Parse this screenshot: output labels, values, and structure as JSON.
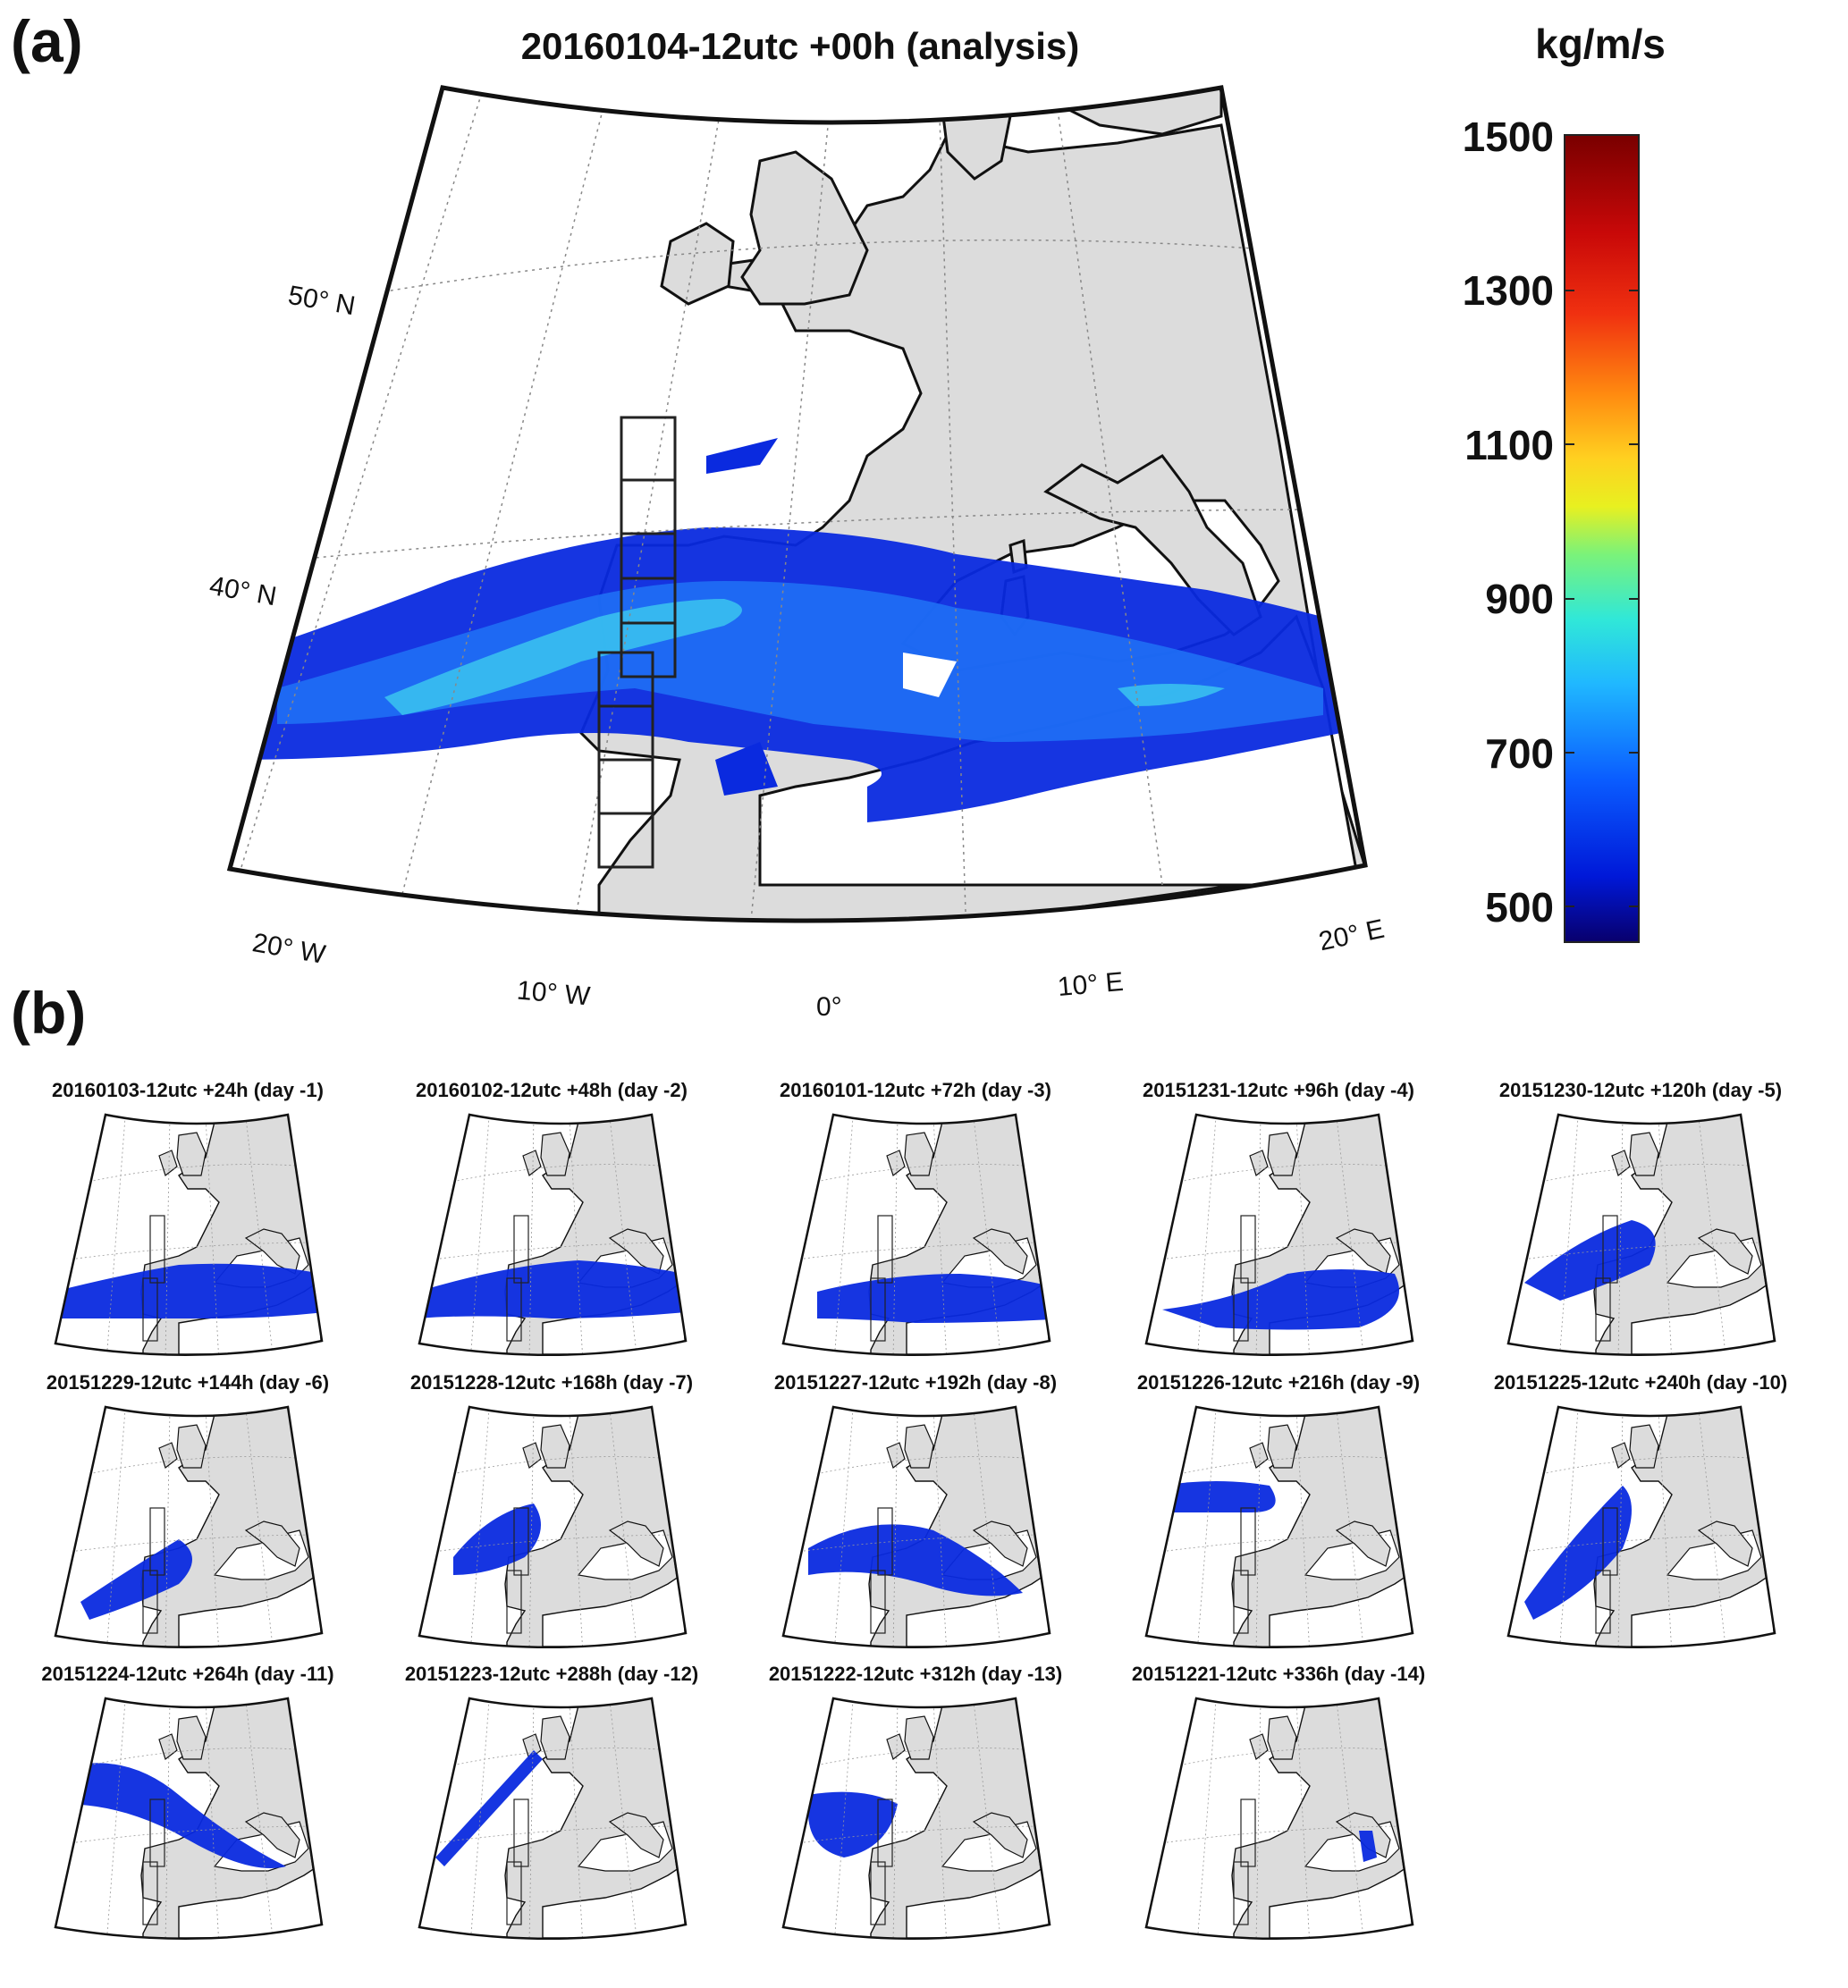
{
  "panel_a": {
    "label": "(a)",
    "title": "20160104-12utc +00h (analysis)",
    "lat_labels": [
      "50° N",
      "40° N"
    ],
    "lon_labels": [
      "20° W",
      "10° W",
      "0°",
      "10° E",
      "20° E"
    ]
  },
  "colorbar": {
    "unit": "kg/m/s",
    "ticks": [
      "1500",
      "1300",
      "1100",
      "900",
      "700",
      "500"
    ]
  },
  "panel_b": {
    "label": "(b)",
    "titles": [
      "20160103-12utc +24h (day -1)",
      "20160102-12utc +48h (day -2)",
      "20160101-12utc +72h (day -3)",
      "20151231-12utc +96h (day -4)",
      "20151230-12utc +120h (day -5)",
      "20151229-12utc +144h (day -6)",
      "20151228-12utc +168h (day -7)",
      "20151227-12utc +192h (day -8)",
      "20151226-12utc +216h (day -9)",
      "20151225-12utc +240h (day -10)",
      "20151224-12utc +264h (day -11)",
      "20151223-12utc +288h (day -12)",
      "20151222-12utc +312h (day -13)",
      "20151221-12utc +336h (day -14)"
    ]
  }
}
